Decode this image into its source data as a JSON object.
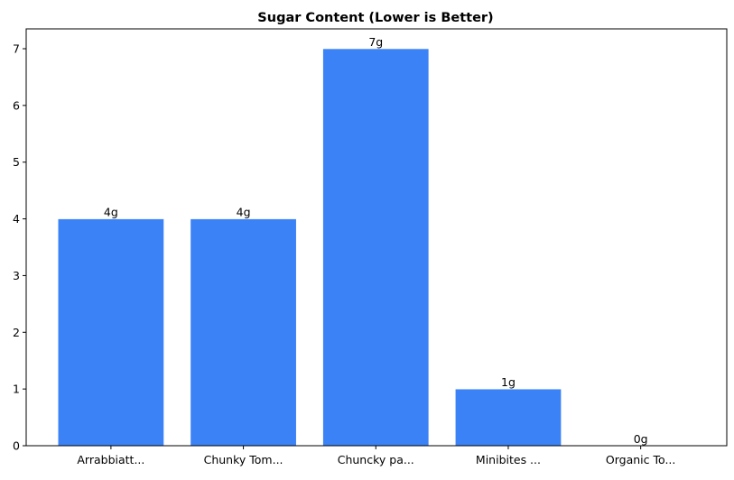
{
  "chart_data": {
    "type": "bar",
    "title": "Sugar Content (Lower is Better)",
    "xlabel": "",
    "ylabel": "",
    "categories": [
      "Arrabbiatt...",
      "Chunky Tom...",
      "Chuncky pa...",
      "Minibites ...",
      "Organic To..."
    ],
    "values": [
      4,
      4,
      7,
      1,
      0
    ],
    "data_labels": [
      "4g",
      "4g",
      "7g",
      "1g",
      "0g"
    ],
    "ylim": [
      0,
      7.35
    ],
    "yticks": [
      0,
      1,
      2,
      3,
      4,
      5,
      6,
      7
    ],
    "grid": false,
    "bar_color": "#3b82f6"
  }
}
